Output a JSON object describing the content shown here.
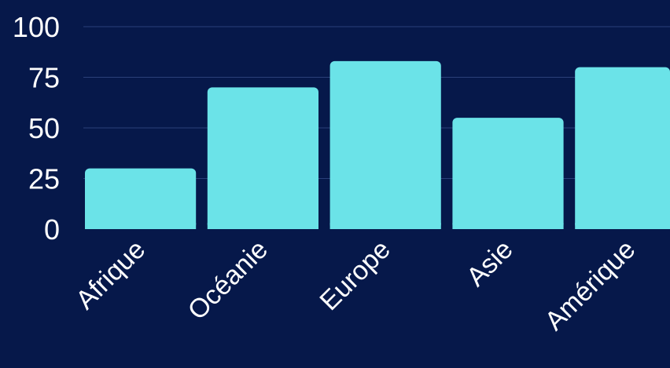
{
  "chart_data": {
    "type": "bar",
    "categories": [
      "Afrique",
      "Océanie",
      "Europe",
      "Asie",
      "Amérique"
    ],
    "values": [
      30,
      70,
      83,
      55,
      80
    ],
    "ylim": [
      0,
      100
    ],
    "yticks": [
      "0",
      "25",
      "50",
      "75",
      "100"
    ],
    "ytick_values": [
      0,
      25,
      50,
      75,
      100
    ],
    "grid": true,
    "title": "",
    "xlabel": "",
    "ylabel": "",
    "colors": {
      "background": "#06184a",
      "bar": "#6be3e8",
      "grid": "#2a3f79",
      "text": "#ffffff"
    }
  }
}
